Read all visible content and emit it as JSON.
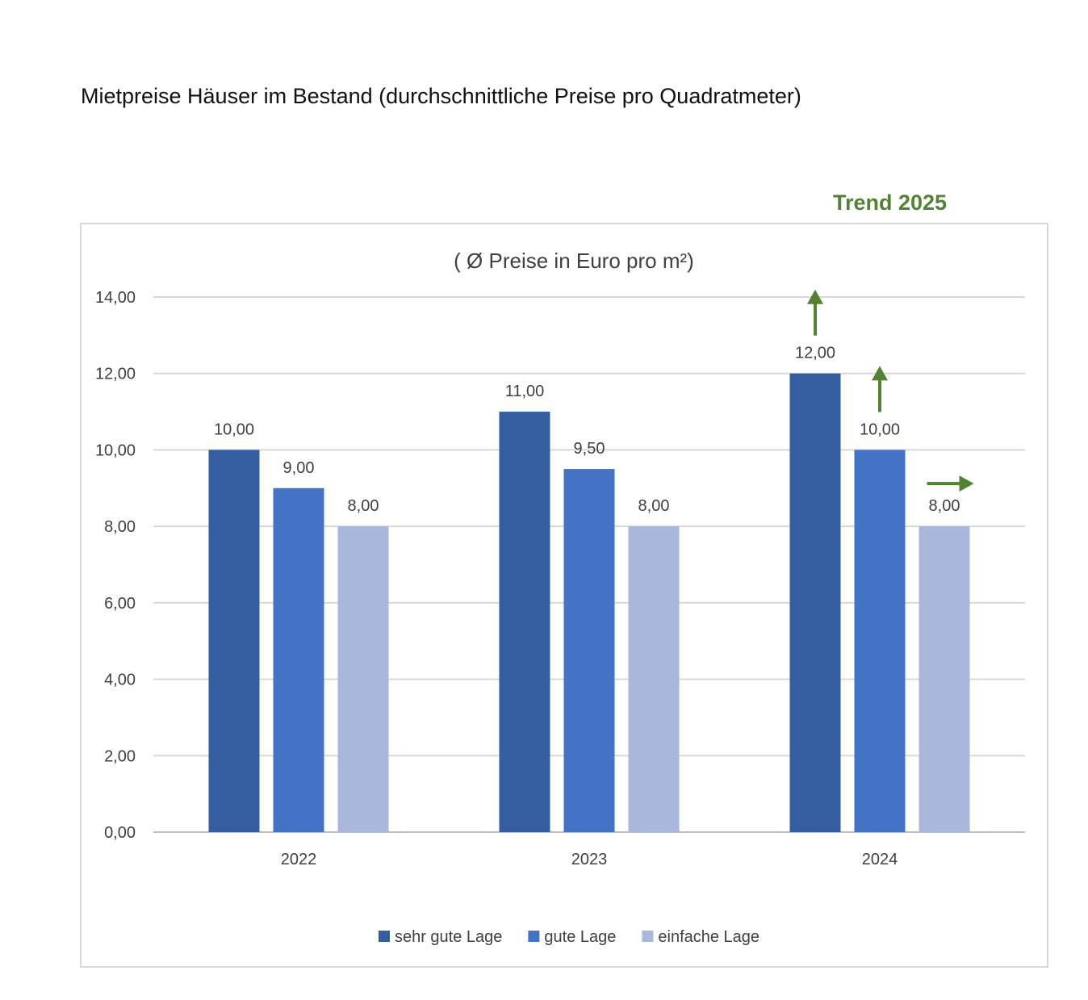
{
  "page_title": "Mietpreise Häuser im Bestand (durchschnittliche Preise pro Quadratmeter)",
  "trend_label": "Trend 2025",
  "chart_data": {
    "type": "bar",
    "title": "( Ø Preise in Euro pro m²)",
    "xlabel": "",
    "ylabel": "",
    "categories": [
      "2022",
      "2023",
      "2024"
    ],
    "series": [
      {
        "name": "sehr gute Lage",
        "values": [
          10,
          11,
          12
        ],
        "color": "#355ea1",
        "labels": [
          "10,00",
          "11,00",
          "12,00"
        ]
      },
      {
        "name": "gute Lage",
        "values": [
          9,
          9.5,
          10
        ],
        "color": "#4472c4",
        "labels": [
          "9,00",
          "9,50",
          "10,00"
        ]
      },
      {
        "name": "einfache Lage",
        "values": [
          8,
          8,
          8
        ],
        "color": "#a9b7da",
        "labels": [
          "8,00",
          "8,00",
          "8,00"
        ]
      }
    ],
    "ylim": [
      0,
      14
    ],
    "yticks": [
      0,
      2,
      4,
      6,
      8,
      10,
      12,
      14
    ],
    "ytick_labels": [
      "0,00",
      "2,00",
      "4,00",
      "6,00",
      "8,00",
      "10,00",
      "12,00",
      "14,00"
    ],
    "grid": true,
    "legend": "bottom",
    "trend_arrows": [
      {
        "series": "sehr gute Lage",
        "category": "2024",
        "direction": "up"
      },
      {
        "series": "gute Lage",
        "category": "2024",
        "direction": "up"
      },
      {
        "series": "einfache Lage",
        "category": "2024",
        "direction": "right"
      }
    ],
    "colors": {
      "trend": "#548235",
      "grid": "#d9d9d9",
      "axis": "#bfbfbf",
      "text": "#404040"
    }
  }
}
